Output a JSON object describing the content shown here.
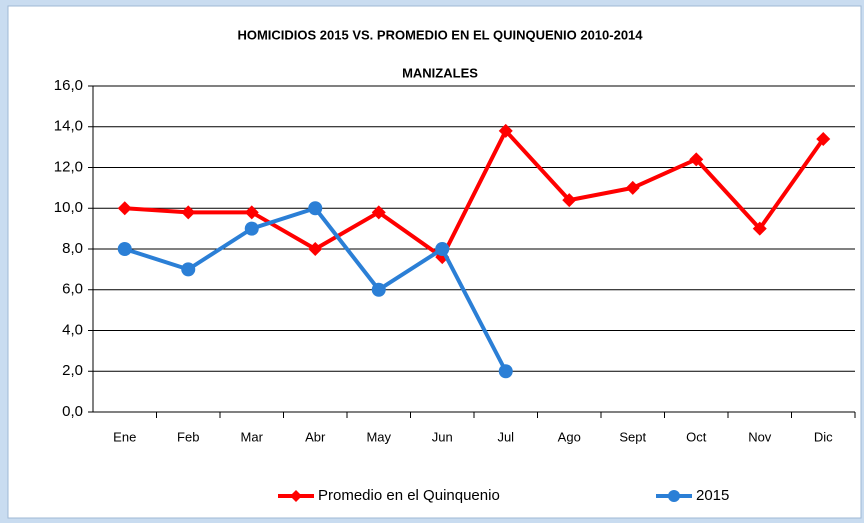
{
  "chart_data": {
    "type": "line",
    "title": "HOMICIDIOS 2015 VS. PROMEDIO EN EL QUINQUENIO  2010-2014",
    "subtitle": "MANIZALES",
    "categories": [
      "Ene",
      "Feb",
      "Mar",
      "Abr",
      "May",
      "Jun",
      "Jul",
      "Ago",
      "Sept",
      "Oct",
      "Nov",
      "Dic"
    ],
    "series": [
      {
        "name": "Promedio en el Quinquenio",
        "color": "#ff0000",
        "marker": "diamond",
        "values": [
          10.0,
          9.8,
          9.8,
          8.0,
          9.8,
          7.6,
          13.8,
          10.4,
          11.0,
          12.4,
          9.0,
          13.4
        ]
      },
      {
        "name": "2015",
        "color": "#2b7fd6",
        "marker": "circle",
        "values": [
          8,
          7,
          9,
          10,
          6,
          8,
          2,
          null,
          null,
          null,
          null,
          null
        ]
      }
    ],
    "ylim": [
      0,
      16
    ],
    "yticks": [
      {
        "value": 0,
        "label": "0,0"
      },
      {
        "value": 2,
        "label": "2,0"
      },
      {
        "value": 4,
        "label": "4,0"
      },
      {
        "value": 6,
        "label": "6,0"
      },
      {
        "value": 8,
        "label": "8,0"
      },
      {
        "value": 10,
        "label": "10,0"
      },
      {
        "value": 12,
        "label": "12,0"
      },
      {
        "value": 14,
        "label": "14,0"
      },
      {
        "value": 16,
        "label": "16,0"
      }
    ],
    "grid": true,
    "legend": "bottom"
  }
}
